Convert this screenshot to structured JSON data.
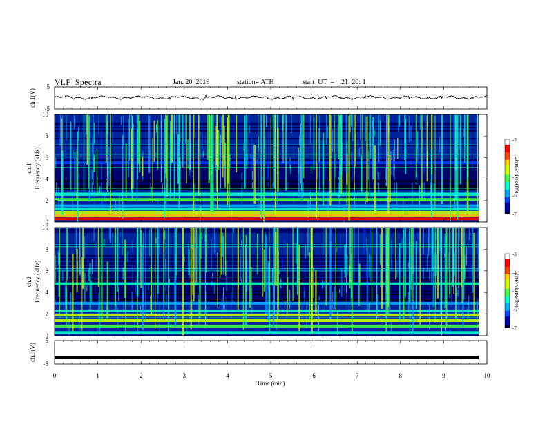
{
  "header": {
    "title": "VLF  Spectra",
    "date": "Jan. 20, 2019",
    "station": "station= ATH",
    "start": "start  UT  =    21: 20: 1"
  },
  "colors": {
    "colormap": [
      "#000000",
      "#000044",
      "#0000cc",
      "#0066ff",
      "#00ccff",
      "#33ff99",
      "#66ff00",
      "#ccff00",
      "#ffff00",
      "#ff6600",
      "#ff0000",
      "#ffffff"
    ],
    "trace": "#000000"
  },
  "chart_data": [
    {
      "type": "line",
      "panel": "ch1-waveform",
      "ylabel": "ch.1(V)",
      "ylim": [
        -5,
        5
      ],
      "yticks": [
        "5",
        "-5"
      ],
      "x_range": [
        0,
        10
      ],
      "approx_level": 0.2
    },
    {
      "type": "heatmap",
      "panel": "ch1-spectrogram",
      "ylabel": "ch.1\nFrequency (kHz)",
      "ylabel_line1": "ch.1",
      "ylabel_line2": "Frequency  (kHz)",
      "ylim": [
        0,
        10
      ],
      "yticks": [
        "10",
        "8",
        "6",
        "4",
        "2",
        "0"
      ],
      "x_range": [
        0,
        9.8
      ],
      "colorbar": {
        "label": "log(PSD)(V²/Hz)",
        "ticks": [
          "-3",
          "-4",
          "-5",
          "-6",
          "-7"
        ],
        "range": [
          -7,
          -3
        ]
      },
      "bands_khz": [
        {
          "f": 0.3,
          "level": -3.6
        },
        {
          "f": 0.6,
          "level": -4.2
        },
        {
          "f": 0.9,
          "level": -4.6
        },
        {
          "f": 1.2,
          "level": -5.6
        },
        {
          "f": 1.5,
          "level": -6.0
        },
        {
          "f": 2.1,
          "level": -5.2
        },
        {
          "f": 2.6,
          "level": -5.4
        },
        {
          "f": 3.8,
          "level": -7.0
        },
        {
          "f": 5.5,
          "level": -6.2
        }
      ]
    },
    {
      "type": "heatmap",
      "panel": "ch2-spectrogram",
      "ylabel": "ch.2\nFrequency (kHz)",
      "ylabel_line1": "ch.2",
      "ylabel_line2": "Frequency  (kHz)",
      "ylim": [
        0,
        10
      ],
      "yticks": [
        "10",
        "8",
        "6",
        "4",
        "2",
        "0"
      ],
      "x_range": [
        0,
        9.8
      ],
      "colorbar": {
        "label": "log(PSD)(V²/Hz)",
        "ticks": [
          "-3",
          "-4",
          "-5",
          "-6",
          "-7"
        ],
        "range": [
          -7,
          -3
        ]
      },
      "bands_khz": [
        {
          "f": 0.3,
          "level": -5.6
        },
        {
          "f": 0.9,
          "level": -5.0
        },
        {
          "f": 1.4,
          "level": -4.6
        },
        {
          "f": 1.9,
          "level": -4.4
        },
        {
          "f": 2.3,
          "level": -5.4
        },
        {
          "f": 3.0,
          "level": -5.8
        },
        {
          "f": 4.8,
          "level": -5.6
        }
      ]
    },
    {
      "type": "line",
      "panel": "ch3-waveform",
      "ylabel": "ch.3(V)",
      "ylim": [
        -5,
        5
      ],
      "yticks": [
        "5",
        "-5"
      ],
      "x_range": [
        0,
        9.8
      ],
      "approx_level": -2.2
    }
  ],
  "xaxis": {
    "label": "Time  (min)",
    "ticks": [
      "0",
      "1",
      "2",
      "3",
      "4",
      "5",
      "6",
      "7",
      "8",
      "9",
      "10"
    ],
    "range": [
      0,
      10
    ]
  }
}
